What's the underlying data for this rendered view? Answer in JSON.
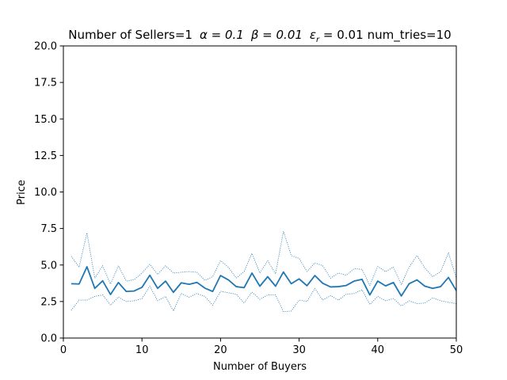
{
  "chart_data": {
    "type": "line",
    "title": "Number of Sellers=1  α = 0.1  β = 0.01  ε_r = 0.01 num_tries=10",
    "title_parts": {
      "prefix": "Number of Sellers=1",
      "alpha": "α = 0.1",
      "beta": "β = 0.01",
      "eps_symbol": "ε",
      "eps_sub": "r",
      "eps_value": " = 0.01",
      "suffix": "num_tries=10"
    },
    "xlabel": "Number of Buyers",
    "ylabel": "Price",
    "xlim": [
      0,
      50
    ],
    "ylim": [
      0,
      20
    ],
    "xticks": [
      0,
      10,
      20,
      30,
      40,
      50
    ],
    "yticks": [
      0.0,
      2.5,
      5.0,
      7.5,
      10.0,
      12.5,
      15.0,
      17.5,
      20.0
    ],
    "xtick_labels": [
      "0",
      "10",
      "20",
      "30",
      "40",
      "50"
    ],
    "ytick_labels": [
      "0.0",
      "2.5",
      "5.0",
      "7.5",
      "10.0",
      "12.5",
      "15.0",
      "17.5",
      "20.0"
    ],
    "grid": false,
    "color": "#1f77b4",
    "x": [
      1,
      2,
      3,
      4,
      5,
      6,
      7,
      8,
      9,
      10,
      11,
      12,
      13,
      14,
      15,
      16,
      17,
      18,
      19,
      20,
      21,
      22,
      23,
      24,
      25,
      26,
      27,
      28,
      29,
      30,
      31,
      32,
      33,
      34,
      35,
      36,
      37,
      38,
      39,
      40,
      41,
      42,
      43,
      44,
      45,
      46,
      47,
      48,
      49,
      50
    ],
    "series": [
      {
        "role": "mean",
        "style": "solid",
        "values": [
          3.72,
          3.7,
          4.88,
          3.4,
          3.92,
          2.98,
          3.8,
          3.19,
          3.22,
          3.47,
          4.3,
          3.4,
          3.9,
          3.13,
          3.78,
          3.68,
          3.81,
          3.42,
          3.19,
          4.28,
          3.98,
          3.52,
          3.45,
          4.45,
          3.55,
          4.2,
          3.55,
          4.52,
          3.72,
          4.05,
          3.58,
          4.28,
          3.75,
          3.5,
          3.52,
          3.6,
          3.9,
          4.02,
          2.95,
          3.9,
          3.57,
          3.8,
          2.88,
          3.72,
          3.98,
          3.55,
          3.4,
          3.52,
          4.15,
          3.25
        ]
      },
      {
        "role": "upper",
        "style": "dotted",
        "values": [
          5.6,
          4.85,
          7.2,
          4.1,
          4.95,
          3.7,
          4.95,
          3.9,
          4.0,
          4.45,
          5.05,
          4.35,
          4.95,
          4.45,
          4.5,
          4.55,
          4.5,
          3.95,
          4.2,
          5.3,
          4.85,
          4.1,
          4.55,
          5.8,
          4.45,
          5.3,
          4.4,
          7.3,
          5.65,
          5.45,
          4.55,
          5.15,
          4.95,
          4.1,
          4.45,
          4.3,
          4.75,
          4.7,
          3.6,
          4.9,
          4.55,
          4.85,
          3.65,
          4.85,
          5.65,
          4.8,
          4.2,
          4.55,
          5.85,
          4.1
        ]
      },
      {
        "role": "lower",
        "style": "dotted",
        "values": [
          1.9,
          2.6,
          2.6,
          2.85,
          2.95,
          2.25,
          2.8,
          2.5,
          2.55,
          2.7,
          3.55,
          2.55,
          2.85,
          1.85,
          3.05,
          2.8,
          3.05,
          2.85,
          2.25,
          3.2,
          3.1,
          3.0,
          2.4,
          3.15,
          2.65,
          2.95,
          2.95,
          1.8,
          1.85,
          2.6,
          2.5,
          3.4,
          2.6,
          2.9,
          2.6,
          3.0,
          3.05,
          3.3,
          2.3,
          2.85,
          2.55,
          2.7,
          2.2,
          2.55,
          2.35,
          2.4,
          2.75,
          2.55,
          2.45,
          2.35
        ]
      }
    ]
  }
}
